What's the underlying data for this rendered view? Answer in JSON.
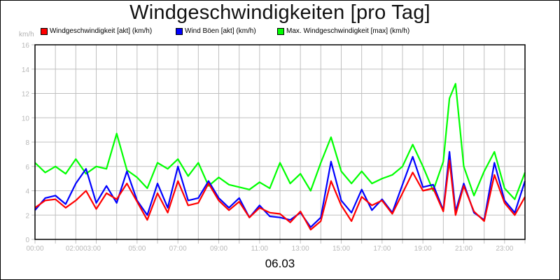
{
  "title": "Windgeschwindigkeiten [pro Tag]",
  "unit_label": "km/h",
  "date_label": "06.03",
  "legend": [
    {
      "label": "Windgeschwindigkeit [akt] (km/h)",
      "color": "#ff0000"
    },
    {
      "label": "Wind Böen [akt] (km/h)",
      "color": "#0000ff"
    },
    {
      "label": "Max. Windgeschwindigkeit [max] (km/h)",
      "color": "#00ff00"
    }
  ],
  "chart_data": {
    "type": "line",
    "title": "Windgeschwindigkeiten [pro Tag]",
    "xlabel": "06.03",
    "ylabel": "km/h",
    "ylim": [
      0,
      16
    ],
    "xlim_hours": [
      0,
      24
    ],
    "grid": true,
    "legend_position": "top",
    "y_ticks": [
      "0",
      "2",
      "4",
      "6",
      "8",
      "10",
      "12",
      "14",
      "16"
    ],
    "x_tick_labels": [
      {
        "h": 0,
        "label": "00:00"
      },
      {
        "h": 2,
        "label": "02:00"
      },
      {
        "h": 3,
        "label": "03:00"
      },
      {
        "h": 5,
        "label": "05:00"
      },
      {
        "h": 7,
        "label": "07:00"
      },
      {
        "h": 9,
        "label": "09:00"
      },
      {
        "h": 11,
        "label": "11:00"
      },
      {
        "h": 13,
        "label": "13:00"
      },
      {
        "h": 15,
        "label": "15:00"
      },
      {
        "h": 17,
        "label": "17:00"
      },
      {
        "h": 19,
        "label": "19:00"
      },
      {
        "h": 21,
        "label": "21:00"
      },
      {
        "h": 23,
        "label": "23:00"
      }
    ],
    "x": [
      0,
      0.5,
      1,
      1.5,
      2,
      2.5,
      3,
      3.5,
      4,
      4.5,
      5,
      5.5,
      6,
      6.5,
      7,
      7.5,
      8,
      8.5,
      9,
      9.5,
      10,
      10.5,
      11,
      11.5,
      12,
      12.5,
      13,
      13.5,
      14,
      14.5,
      15,
      15.5,
      16,
      16.5,
      17,
      17.5,
      18,
      18.5,
      19,
      19.5,
      20,
      20.3,
      20.6,
      21,
      21.5,
      22,
      22.5,
      23,
      23.5,
      24
    ],
    "series": [
      {
        "name": "Windgeschwindigkeit [akt] (km/h)",
        "color": "#ff0000",
        "values": [
          2.6,
          3.2,
          3.3,
          2.6,
          3.2,
          4.0,
          2.5,
          3.8,
          3.3,
          4.6,
          3.1,
          1.6,
          3.8,
          2.2,
          4.8,
          2.8,
          3.0,
          4.6,
          3.2,
          2.4,
          3.1,
          1.8,
          2.6,
          2.2,
          2.1,
          1.4,
          2.3,
          0.8,
          1.5,
          4.8,
          2.8,
          1.5,
          3.5,
          2.8,
          3.2,
          2.1,
          3.8,
          5.5,
          4.0,
          4.2,
          2.3,
          6.5,
          2.0,
          4.4,
          2.3,
          1.5,
          5.3,
          3.0,
          2.0,
          3.5
        ]
      },
      {
        "name": "Wind Böen [akt] (km/h)",
        "color": "#0000ff",
        "values": [
          2.4,
          3.4,
          3.6,
          2.9,
          4.6,
          5.8,
          3.0,
          4.4,
          3.0,
          5.6,
          3.2,
          2.0,
          4.6,
          2.6,
          6.0,
          3.2,
          3.4,
          4.8,
          3.4,
          2.6,
          3.4,
          1.8,
          2.8,
          1.9,
          1.8,
          1.6,
          2.2,
          1.0,
          1.8,
          6.4,
          3.2,
          2.2,
          4.1,
          2.4,
          3.3,
          2.2,
          4.5,
          6.8,
          4.3,
          4.5,
          2.4,
          7.2,
          2.3,
          4.6,
          2.2,
          1.6,
          6.3,
          3.2,
          2.2,
          4.8
        ]
      },
      {
        "name": "Max. Windgeschwindigkeit [max] (km/h)",
        "color": "#00ff00",
        "values": [
          6.3,
          5.5,
          6.0,
          5.4,
          6.6,
          5.4,
          6.0,
          5.8,
          8.7,
          5.7,
          5.1,
          4.2,
          6.3,
          5.8,
          6.6,
          5.2,
          6.3,
          4.4,
          5.1,
          4.5,
          4.3,
          4.1,
          4.7,
          4.2,
          6.3,
          4.6,
          5.4,
          4.0,
          6.3,
          8.4,
          5.6,
          4.6,
          5.6,
          4.6,
          5.0,
          5.3,
          6.0,
          7.8,
          6.0,
          4.0,
          6.4,
          11.6,
          12.8,
          6.0,
          3.6,
          5.6,
          7.2,
          4.2,
          3.3,
          5.5
        ]
      }
    ]
  }
}
